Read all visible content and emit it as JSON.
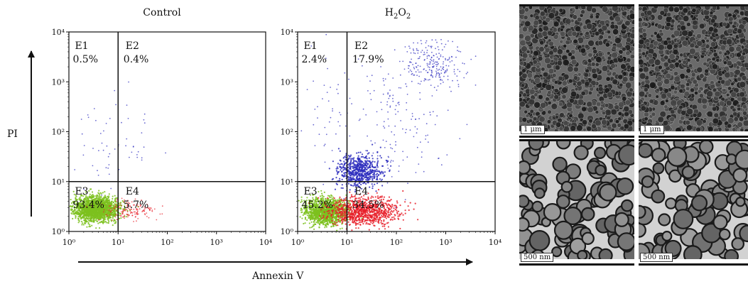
{
  "chart_data": [
    {
      "type": "scatter",
      "title": "Control",
      "subplot": "control",
      "x_scale": "log",
      "y_scale": "log",
      "xlim": [
        1,
        10000
      ],
      "ylim": [
        1,
        10000
      ],
      "x_ticks": [
        "10⁰",
        "10¹",
        "10²",
        "10³",
        "10⁴"
      ],
      "y_ticks": [
        "10⁰",
        "10¹",
        "10²",
        "10³",
        "10⁴"
      ],
      "gate": {
        "x": 10,
        "y": 10
      },
      "quadrants": [
        {
          "name": "E1",
          "value": "0.5%"
        },
        {
          "name": "E2",
          "value": "0.4%"
        },
        {
          "name": "E3",
          "value": "93.4%"
        },
        {
          "name": "E4",
          "value": "5.7%"
        }
      ]
    },
    {
      "type": "scatter",
      "title": "H₂O₂",
      "subplot": "h2o2",
      "x_scale": "log",
      "y_scale": "log",
      "xlim": [
        1,
        10000
      ],
      "ylim": [
        1,
        10000
      ],
      "x_ticks": [
        "10⁰",
        "10¹",
        "10²",
        "10³",
        "10⁴"
      ],
      "y_ticks": [
        "10⁰",
        "10¹",
        "10²",
        "10³",
        "10⁴"
      ],
      "gate": {
        "x": 10,
        "y": 10
      },
      "quadrants": [
        {
          "name": "E1",
          "value": "2.4%"
        },
        {
          "name": "E2",
          "value": "17.9%"
        },
        {
          "name": "E3",
          "value": "45.2%"
        },
        {
          "name": "E4",
          "value": "34.5%"
        }
      ]
    }
  ],
  "axes": {
    "ylabel": "PI",
    "xlabel": "Annexin V"
  },
  "colors": {
    "viable": "#7cc11e",
    "early_apoptotic": "#e8202a",
    "late_apoptotic": "#2b2bbd",
    "axis": "#111111"
  },
  "micrographs": [
    {
      "scale_label": "1 μm",
      "scale_italic_unit": "μm",
      "scale_number": "1"
    },
    {
      "scale_label": "1 μm",
      "scale_italic_unit": "μm",
      "scale_number": "1"
    },
    {
      "scale_label": "500 nm"
    },
    {
      "scale_label": "500 nm"
    }
  ]
}
